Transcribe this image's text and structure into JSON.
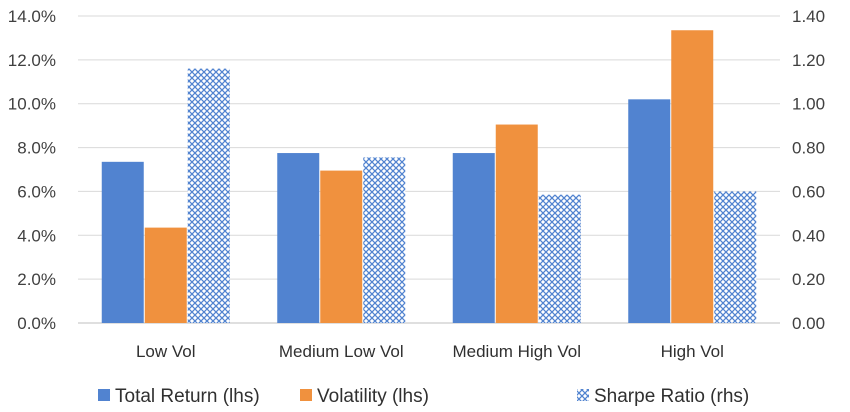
{
  "chart_data": {
    "type": "bar",
    "categories": [
      "Low Vol",
      "Medium Low Vol",
      "Medium High Vol",
      "High Vol"
    ],
    "series": [
      {
        "name": "Total Return (lhs)",
        "axis": "left",
        "color": "#5183d0",
        "pattern": "solid",
        "values": [
          7.35,
          7.75,
          7.75,
          10.2
        ]
      },
      {
        "name": "Volatility (lhs)",
        "axis": "left",
        "color": "#f0913e",
        "pattern": "solid",
        "values": [
          4.35,
          6.95,
          9.05,
          13.35
        ]
      },
      {
        "name": "Sharpe Ratio (rhs)",
        "axis": "right",
        "color": "#5183d0",
        "pattern": "crosshatch",
        "values": [
          1.16,
          0.755,
          0.585,
          0.6
        ]
      }
    ],
    "y_left": {
      "lim": [
        0,
        14
      ],
      "ticks": [
        0,
        2,
        4,
        6,
        8,
        10,
        12,
        14
      ],
      "tick_labels": [
        "0.0%",
        "2.0%",
        "4.0%",
        "6.0%",
        "8.0%",
        "10.0%",
        "12.0%",
        "14.0%"
      ]
    },
    "y_right": {
      "lim": [
        0,
        1.4
      ],
      "ticks": [
        0,
        0.2,
        0.4,
        0.6,
        0.8,
        1.0,
        1.2,
        1.4
      ],
      "tick_labels": [
        "0.00",
        "0.20",
        "0.40",
        "0.60",
        "0.80",
        "1.00",
        "1.20",
        "1.40"
      ]
    },
    "grid": true,
    "legend_position": "bottom",
    "title": "",
    "xlabel": "",
    "ylabel": ""
  }
}
